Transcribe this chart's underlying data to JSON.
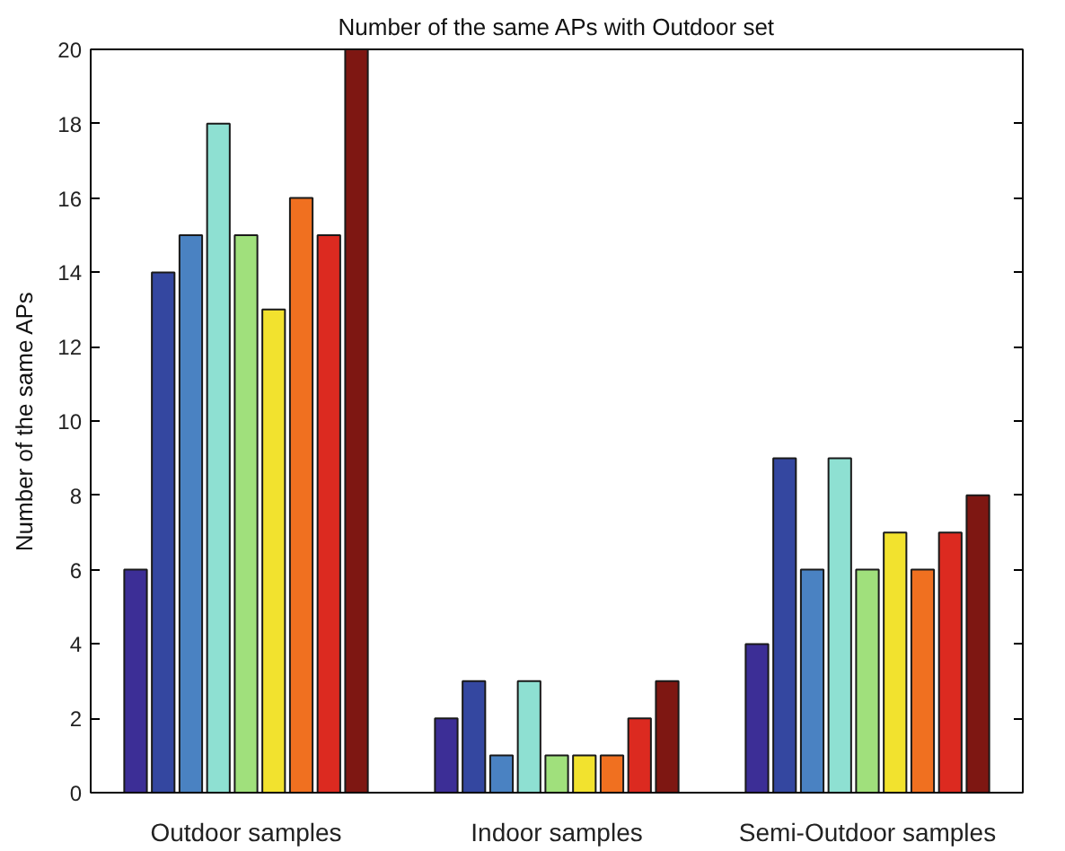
{
  "chart_data": {
    "type": "bar",
    "title": "Number of the same APs with Outdoor set",
    "ylabel": "Number of the same APs",
    "categories": [
      "Outdoor samples",
      "Indoor samples",
      "Semi-Outdoor samples"
    ],
    "series": [
      {
        "color": "#3c2e96",
        "values": [
          6,
          2,
          4
        ]
      },
      {
        "color": "#3447a0",
        "values": [
          14,
          3,
          9
        ]
      },
      {
        "color": "#4a82c2",
        "values": [
          15,
          1,
          6
        ]
      },
      {
        "color": "#8ee0d2",
        "values": [
          18,
          3,
          9
        ]
      },
      {
        "color": "#a0e07c",
        "values": [
          15,
          1,
          6
        ]
      },
      {
        "color": "#f2e22e",
        "values": [
          13,
          1,
          7
        ]
      },
      {
        "color": "#f07020",
        "values": [
          16,
          1,
          6
        ]
      },
      {
        "color": "#dc2a20",
        "values": [
          15,
          2,
          7
        ]
      },
      {
        "color": "#7e1712",
        "values": [
          20,
          3,
          8
        ]
      }
    ],
    "ylim": [
      0,
      20
    ],
    "yticks": [
      0,
      2,
      4,
      6,
      8,
      10,
      12,
      14,
      16,
      18,
      20
    ]
  }
}
